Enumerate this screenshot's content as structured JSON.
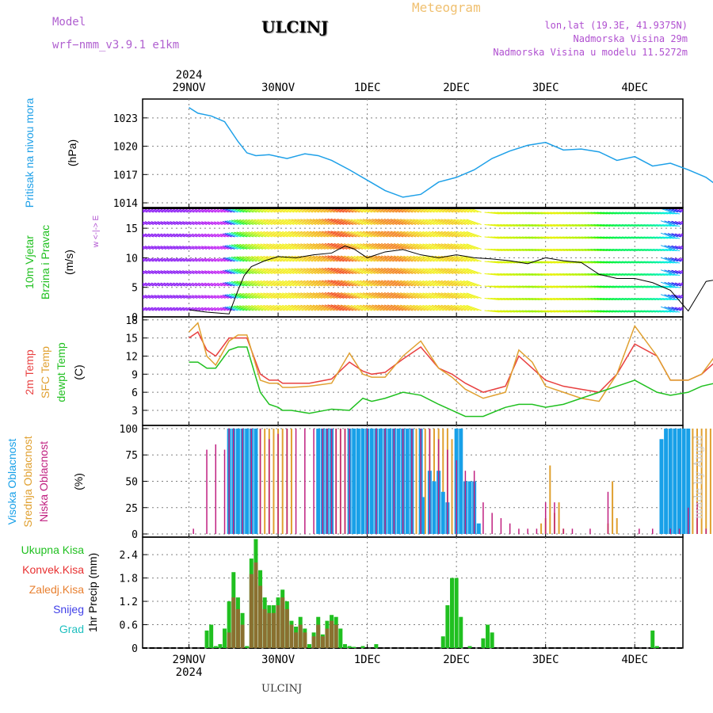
{
  "header": {
    "model_label": "Model",
    "model_name": "wrf−nmm_v3.9.1  e1km",
    "station": "ULCINJ",
    "product": "Meteogram",
    "lonlat": "lon,lat (19.3E, 41.9375N)",
    "elev": "Nadmorska Visina 29m",
    "elev_model": "Nadmorska Visina u modelu 11.5272m"
  },
  "footer": {
    "station": "ULCINJ",
    "credit": "made by Angel"
  },
  "colors": {
    "pressure": "#1ea0e8",
    "t2m": "#e84040",
    "tsfc": "#e0a030",
    "dewpt": "#20c020",
    "high_cloud": "#18a0e8",
    "mid_cloud": "#e0a030",
    "low_cloud": "#c02080",
    "precip_total": "#20c020",
    "precip_conv": "#e83030",
    "precip_fz": "#e88030",
    "snow": "#4040e8",
    "hail": "#20c0c0",
    "grid": "#808080"
  },
  "chart_data": [
    {
      "type": "line",
      "panel": "pressure",
      "ylabel_name": "Pritisak na nivou mora",
      "ylabel_unit": "(hPa)",
      "top_axis_year": "2024",
      "x_ticks": [
        "29NOV",
        "30NOV",
        "1DEC",
        "2DEC",
        "3DEC",
        "4DEC"
      ],
      "x_range": [
        0,
        6
      ],
      "ylim": [
        1013.5,
        1025
      ],
      "y_ticks": [
        "1014",
        "1017",
        "1020",
        "1023"
      ],
      "grid": true,
      "series": [
        {
          "x": [
            0,
            0.1,
            0.25,
            0.4,
            0.55,
            0.65,
            0.75,
            0.9,
            1.1,
            1.3,
            1.45,
            1.6,
            1.8,
            2.0,
            2.2,
            2.4,
            2.6,
            2.8,
            3.0,
            3.2,
            3.4,
            3.6,
            3.8,
            4.0,
            4.2,
            4.4,
            4.6,
            4.8,
            5.0,
            5.2,
            5.4,
            5.6,
            5.8,
            6.0
          ],
          "y": [
            1024.1,
            1023.5,
            1023.2,
            1022.6,
            1020.5,
            1019.3,
            1019.0,
            1019.1,
            1018.7,
            1019.2,
            1019.0,
            1018.5,
            1017.5,
            1016.4,
            1015.3,
            1014.6,
            1014.9,
            1016.2,
            1016.7,
            1017.5,
            1018.7,
            1019.5,
            1020.1,
            1020.4,
            1019.6,
            1019.7,
            1019.4,
            1018.5,
            1018.9,
            1017.9,
            1018.2,
            1017.5,
            1016.7,
            1015.3
          ]
        }
      ]
    },
    {
      "type": "line",
      "panel": "wind",
      "ylabel_name_1": "10m Vjetar",
      "ylabel_name_2": "Brzina i Pravac",
      "ylabel_unit": "(m/s)",
      "dir_legend": "w <-|-> E",
      "ylim": [
        0,
        18.5
      ],
      "y_ticks": [
        "0",
        "5",
        "10",
        "15"
      ],
      "grid": true,
      "series": [
        {
          "name": "10m wind speed",
          "x": [
            0,
            0.2,
            0.45,
            0.55,
            0.62,
            0.7,
            0.85,
            1.0,
            1.2,
            1.4,
            1.6,
            1.75,
            1.85,
            2.0,
            2.2,
            2.4,
            2.6,
            2.8,
            3.0,
            3.2,
            3.4,
            3.6,
            3.8,
            4.0,
            4.2,
            4.4,
            4.6,
            4.8,
            5.0,
            5.2,
            5.4,
            5.6,
            5.8,
            6.0
          ],
          "y": [
            1.2,
            0.8,
            0.5,
            4.5,
            7.0,
            8.5,
            9.5,
            10.2,
            10.0,
            10.5,
            10.8,
            12.0,
            11.5,
            10.0,
            11.0,
            11.4,
            10.5,
            10.0,
            10.5,
            10.0,
            9.8,
            9.5,
            9.0,
            10.0,
            9.5,
            9.2,
            7.2,
            6.5,
            6.5,
            5.8,
            4.5,
            1.0,
            6.0,
            6.5
          ]
        }
      ],
      "barbs_color_note": "colored by speed"
    },
    {
      "type": "line",
      "panel": "temperature",
      "ylabel_name_1": "2m Temp",
      "ylabel_name_2": "SFC Temp",
      "ylabel_name_3": "dewpt Temp",
      "ylabel_unit": "(C)",
      "ylim": [
        0.5,
        18.5
      ],
      "y_ticks": [
        "3",
        "6",
        "9",
        "12",
        "15",
        "18"
      ],
      "grid": true,
      "x": [
        0,
        0.1,
        0.2,
        0.3,
        0.45,
        0.55,
        0.65,
        0.8,
        0.9,
        1.0,
        1.05,
        1.15,
        1.35,
        1.6,
        1.8,
        1.95,
        2.05,
        2.2,
        2.4,
        2.6,
        2.8,
        2.95,
        3.1,
        3.3,
        3.55,
        3.7,
        3.85,
        4.0,
        4.2,
        4.4,
        4.6,
        4.8,
        5.0,
        5.25,
        5.4,
        5.6,
        5.75,
        5.9,
        6.0
      ],
      "series": [
        {
          "name": "2m Temp",
          "y": [
            15,
            16,
            13,
            12,
            15,
            15,
            15,
            9,
            8,
            8,
            7.5,
            7.5,
            7.5,
            8.2,
            11,
            9.5,
            9,
            9.3,
            11.5,
            13.5,
            10,
            9,
            7.5,
            6,
            7,
            12,
            10,
            8,
            7,
            6.5,
            6,
            9,
            14,
            12,
            8,
            8,
            9,
            11,
            11
          ]
        },
        {
          "name": "SFC Temp",
          "y": [
            16,
            17.5,
            12,
            10.5,
            14.5,
            15.5,
            15.5,
            8,
            7.5,
            7.5,
            6.8,
            6.8,
            7,
            7.5,
            12.5,
            9,
            8.5,
            8.5,
            12,
            14.5,
            10,
            8.5,
            6.5,
            5,
            6,
            13,
            11,
            7,
            6,
            5,
            4.5,
            9,
            17,
            12,
            8,
            8,
            9,
            12,
            11
          ]
        },
        {
          "name": "dewpt Temp",
          "y": [
            11,
            11,
            10,
            10,
            13,
            13.5,
            13.5,
            6,
            4,
            3.5,
            3,
            3,
            2.5,
            3.2,
            3,
            5,
            4.5,
            5,
            6,
            5.5,
            4,
            3,
            2,
            2,
            3.5,
            4,
            4,
            3.5,
            4,
            5,
            6,
            7,
            8,
            6,
            5.5,
            6,
            7,
            7.5,
            7.5
          ]
        }
      ]
    },
    {
      "type": "bar",
      "panel": "cloud",
      "ylabel_name_1": "Visoka Oblacnost",
      "ylabel_name_2": "Srednja Oblacnost",
      "ylabel_name_3": "Niska Oblacnost",
      "ylabel_unit": "(%)",
      "ylim": [
        -3,
        103
      ],
      "y_ticks": [
        "0",
        "25",
        "50",
        "75",
        "100"
      ],
      "grid": true,
      "series": [
        {
          "name": "Visoka Oblacnost",
          "x": [
            0.45,
            0.5,
            0.55,
            0.6,
            0.65,
            0.7,
            0.75,
            1.45,
            1.5,
            1.55,
            1.6,
            1.8,
            1.85,
            1.9,
            1.95,
            2.0,
            2.05,
            2.1,
            2.15,
            2.2,
            2.25,
            2.3,
            2.35,
            2.4,
            2.45,
            2.5,
            2.6,
            2.62,
            2.7,
            2.75,
            2.8,
            2.85,
            2.9,
            3.0,
            3.05,
            3.1,
            3.15,
            3.2,
            3.25,
            5.3,
            5.35,
            5.4,
            5.45,
            5.5,
            5.55,
            5.6
          ],
          "y": [
            100,
            100,
            100,
            100,
            100,
            100,
            100,
            100,
            100,
            100,
            100,
            100,
            100,
            100,
            100,
            100,
            100,
            100,
            100,
            100,
            100,
            100,
            100,
            100,
            100,
            100,
            100,
            35,
            60,
            50,
            60,
            40,
            30,
            100,
            100,
            50,
            50,
            50,
            10,
            90,
            100,
            100,
            100,
            100,
            100,
            100
          ]
        },
        {
          "name": "Srednja Oblacnost",
          "x": [
            0.5,
            0.55,
            0.6,
            0.65,
            0.7,
            0.75,
            0.8,
            0.85,
            0.9,
            0.95,
            1.0,
            1.05,
            1.1,
            1.15,
            1.6,
            1.65,
            1.7,
            1.75,
            1.8,
            1.85,
            1.9,
            1.95,
            2.0,
            2.05,
            2.1,
            2.15,
            2.2,
            2.25,
            2.3,
            2.35,
            2.4,
            2.45,
            2.5,
            2.55,
            2.6,
            2.65,
            2.7,
            2.75,
            2.8,
            2.85,
            2.9,
            2.95,
            3.05,
            3.25,
            3.95,
            4.0,
            4.05,
            4.1,
            4.15,
            4.2,
            4.7,
            4.75,
            4.8,
            5.6,
            5.65,
            5.7,
            5.75,
            5.8,
            5.85,
            5.9,
            5.95
          ],
          "y": [
            100,
            100,
            100,
            100,
            100,
            100,
            100,
            100,
            100,
            100,
            100,
            100,
            100,
            100,
            100,
            100,
            100,
            100,
            100,
            100,
            100,
            100,
            100,
            100,
            100,
            100,
            100,
            100,
            100,
            100,
            100,
            100,
            100,
            100,
            100,
            100,
            100,
            100,
            100,
            100,
            100,
            90,
            50,
            5,
            10,
            15,
            65,
            20,
            30,
            5,
            10,
            50,
            15,
            100,
            100,
            100,
            100,
            100,
            100,
            100,
            100
          ]
        },
        {
          "name": "Niska Oblacnost",
          "x": [
            0.05,
            0.2,
            0.3,
            0.4,
            0.45,
            0.5,
            0.6,
            0.7,
            0.8,
            0.9,
            1.0,
            1.1,
            1.2,
            1.3,
            1.4,
            1.5,
            1.55,
            1.6,
            1.65,
            1.7,
            1.75,
            1.8,
            2.0,
            2.1,
            2.2,
            2.3,
            2.4,
            2.5,
            2.6,
            2.7,
            2.8,
            2.9,
            3.0,
            3.1,
            3.2,
            3.3,
            3.4,
            3.5,
            3.6,
            3.7,
            3.8,
            3.9,
            4.0,
            4.1,
            4.2,
            4.3,
            4.5,
            4.7,
            5.05,
            5.2,
            5.4,
            5.5,
            5.6,
            5.7,
            5.8,
            5.9,
            6.0
          ],
          "y": [
            5,
            80,
            85,
            80,
            100,
            100,
            100,
            100,
            100,
            90,
            95,
            100,
            100,
            100,
            100,
            100,
            100,
            100,
            100,
            100,
            100,
            100,
            100,
            100,
            100,
            100,
            100,
            100,
            100,
            100,
            90,
            80,
            70,
            60,
            60,
            30,
            20,
            15,
            10,
            5,
            5,
            5,
            30,
            30,
            5,
            5,
            5,
            40,
            5,
            5,
            5,
            5,
            25,
            30,
            5,
            5,
            5
          ]
        }
      ]
    },
    {
      "type": "bar",
      "panel": "precip",
      "ylabel_unit": "1hr Precip (mm)",
      "legend": [
        "Ukupna Kisa",
        "Konvek.Kisa",
        "Zaledj.Kisa",
        "Snijeg",
        "Grad"
      ],
      "bottom_axis_year": "2024",
      "ylim": [
        0,
        2.85
      ],
      "y_ticks": [
        "0",
        "0.6",
        "1.2",
        "1.8",
        "2.4"
      ],
      "grid": true,
      "series": [
        {
          "name": "Ukupna Kisa",
          "x": [
            0.2,
            0.25,
            0.3,
            0.35,
            0.4,
            0.45,
            0.5,
            0.55,
            0.6,
            0.65,
            0.7,
            0.75,
            0.8,
            0.85,
            0.9,
            0.95,
            1.0,
            1.05,
            1.1,
            1.15,
            1.2,
            1.25,
            1.3,
            1.35,
            1.4,
            1.45,
            1.5,
            1.55,
            1.6,
            1.65,
            1.7,
            1.75,
            1.8,
            1.85,
            1.95,
            2.1,
            2.85,
            2.9,
            2.95,
            3.0,
            3.05,
            3.15,
            3.3,
            3.35,
            3.4,
            5.2,
            5.25
          ],
          "y": [
            0.45,
            0.6,
            0.05,
            0.1,
            0.5,
            1.2,
            1.95,
            1.3,
            0.9,
            0.05,
            2.3,
            2.8,
            2.0,
            1.3,
            1.1,
            1.1,
            1.3,
            1.5,
            1.2,
            0.7,
            0.55,
            0.8,
            0.5,
            0.1,
            0.4,
            0.8,
            0.35,
            0.7,
            0.85,
            0.8,
            0.5,
            0.1,
            0.05,
            0.03,
            0.05,
            0.1,
            0.3,
            1.1,
            1.8,
            1.8,
            0.8,
            0.05,
            0.25,
            0.6,
            0.4,
            0.45,
            0.05
          ]
        },
        {
          "name": "Konvek.Kisa",
          "x": [
            0.45,
            0.5,
            0.55,
            0.6,
            0.7,
            0.75,
            0.8,
            0.85,
            0.9,
            0.95,
            1.0,
            1.05,
            1.1,
            1.15,
            1.2,
            1.25,
            1.3,
            1.4,
            1.45,
            1.5,
            1.55,
            1.6,
            1.65
          ],
          "y": [
            0.4,
            1.3,
            1.0,
            0.6,
            1.9,
            2.2,
            1.6,
            1.0,
            0.9,
            0.9,
            1.1,
            1.3,
            1.0,
            0.6,
            0.4,
            0.6,
            0.4,
            0.3,
            0.6,
            0.3,
            0.5,
            0.7,
            0.6
          ]
        }
      ]
    }
  ]
}
